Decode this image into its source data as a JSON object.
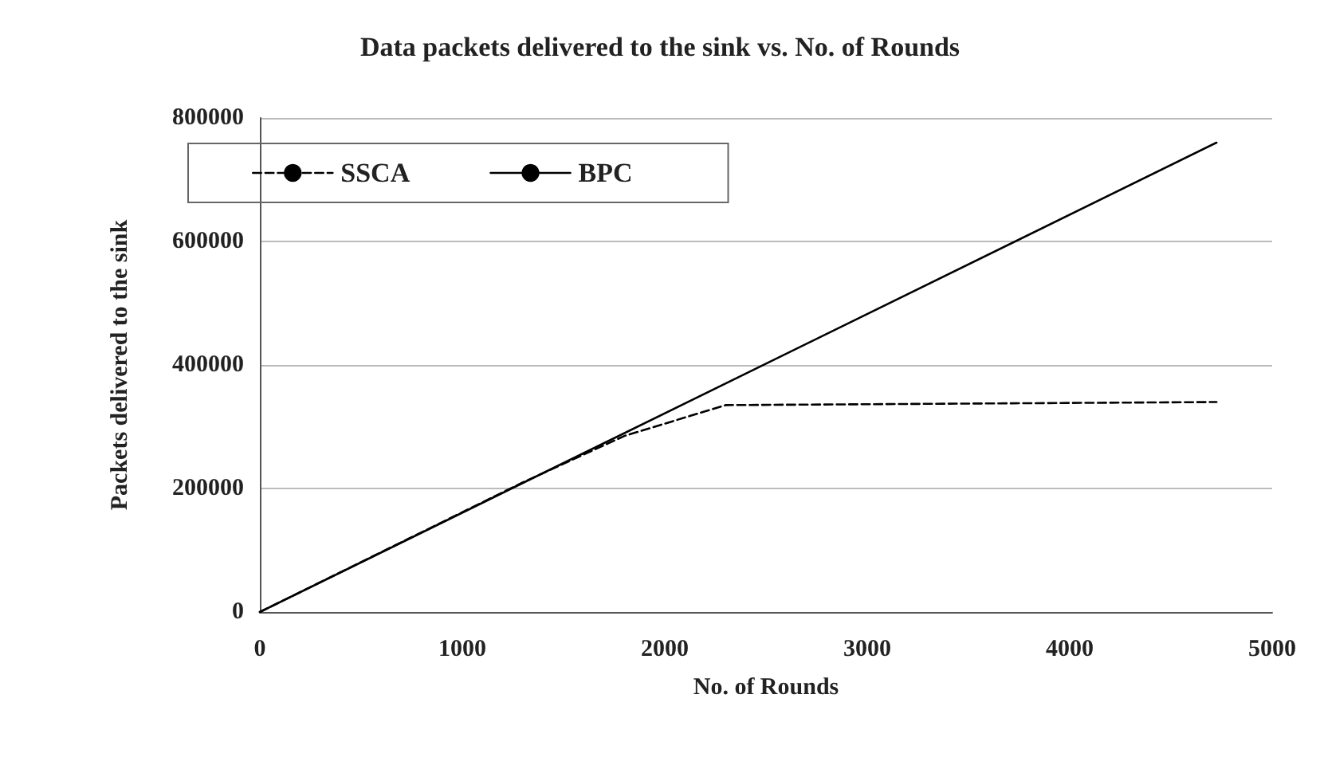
{
  "chart_data": {
    "type": "line",
    "title": "Data packets delivered to the sink vs. No. of Rounds",
    "xlabel": "No. of Rounds",
    "ylabel": "Packets delivered to the sink",
    "xlim": [
      0,
      5000
    ],
    "xticks": [
      0,
      1000,
      2000,
      3000,
      4000,
      5000
    ],
    "ylim": [
      0,
      800000
    ],
    "yticks": [
      0,
      200000,
      400000,
      600000,
      800000
    ],
    "grid": "y",
    "legend": "top left",
    "marker": "none",
    "series": [
      {
        "name": "SSCA",
        "color": "#000000",
        "line_style": "dashed",
        "x": [
          0,
          1300,
          1800,
          2300,
          4725
        ],
        "values": [
          0,
          210000,
          285000,
          335000,
          340000
        ]
      },
      {
        "name": "BPC",
        "color": "#000000",
        "line_style": "solid",
        "x": [
          0,
          4725
        ],
        "values": [
          0,
          760000
        ]
      }
    ]
  }
}
